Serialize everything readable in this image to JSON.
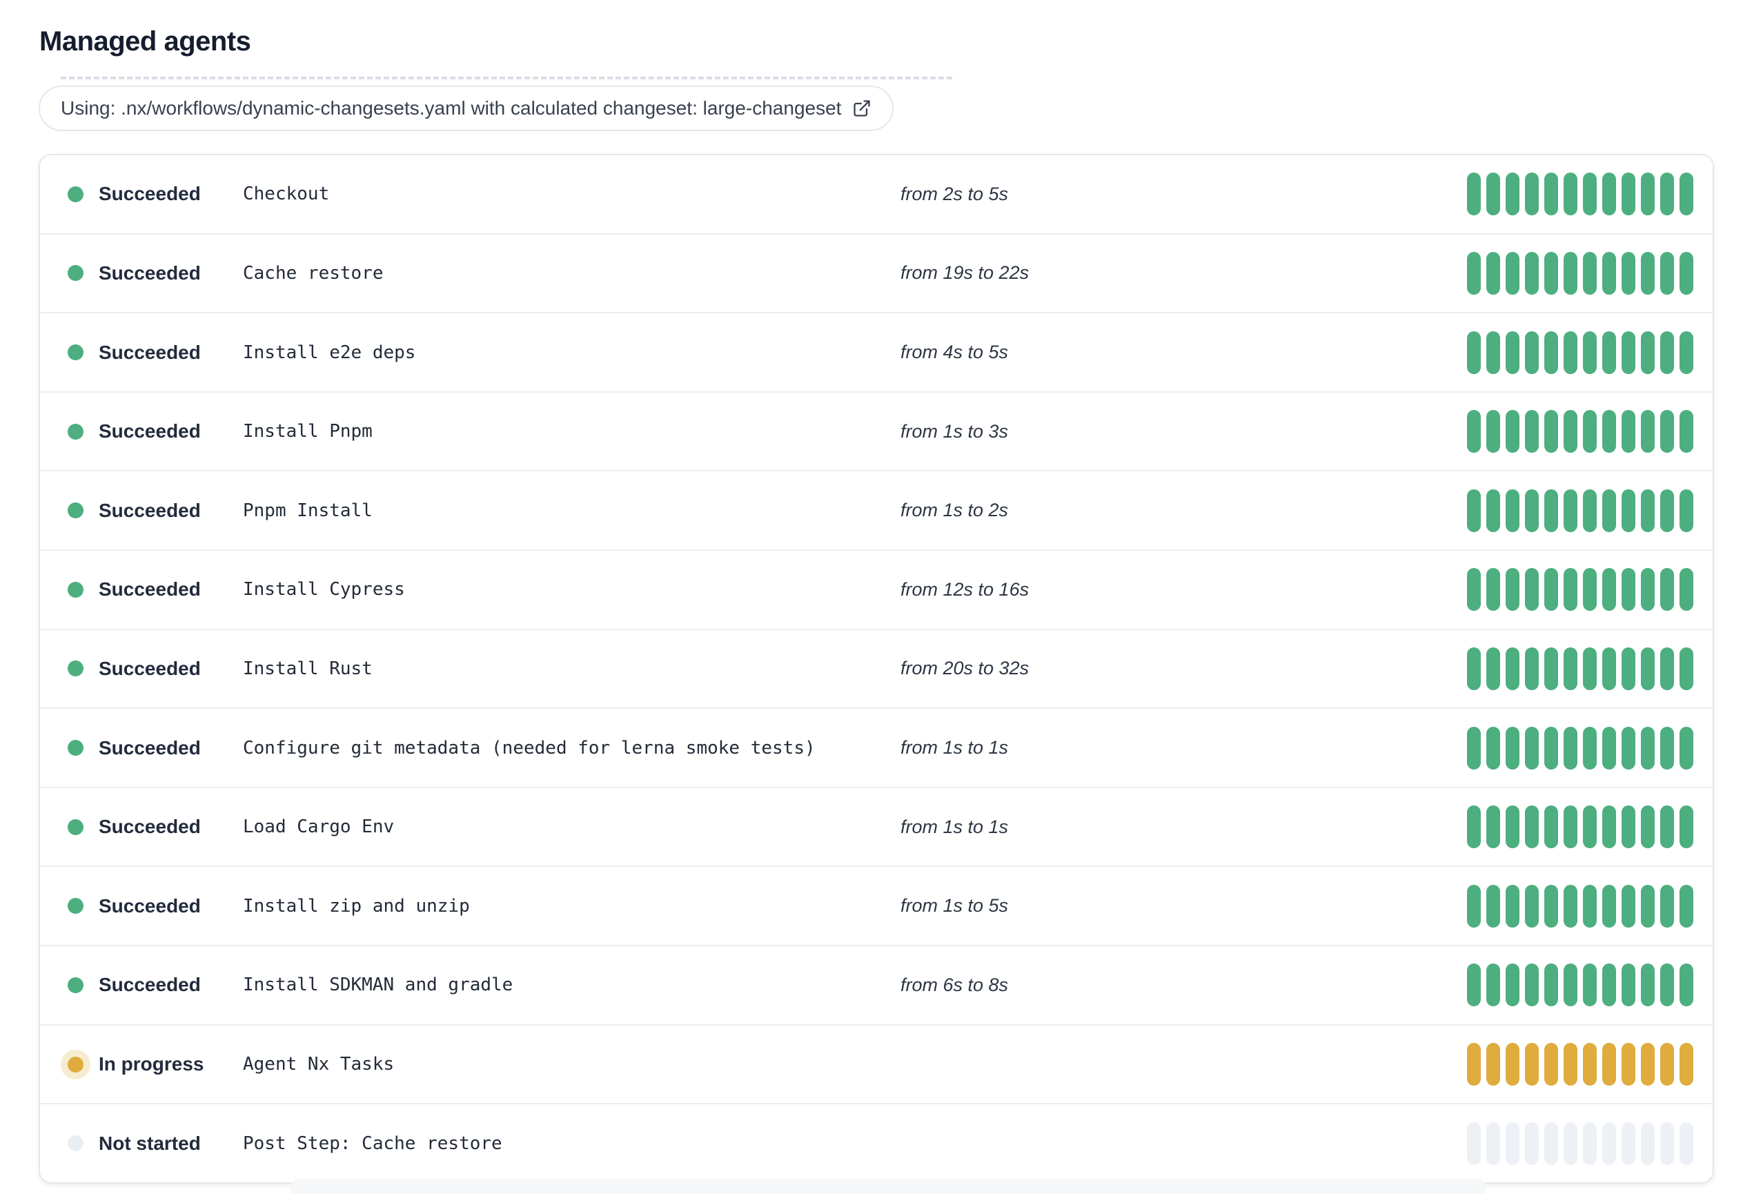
{
  "page": {
    "title": "Managed agents"
  },
  "banner": {
    "text": "Using: .nx/workflows/dynamic-changesets.yaml with calculated changeset: large-changeset",
    "icon": "external-link-icon"
  },
  "status_colors": {
    "succeeded": "#4dae80",
    "in_progress": "#dfac3d",
    "not_started": "#edf1f6"
  },
  "agents": {
    "segments_per_row": 12,
    "rows": [
      {
        "status": "Succeeded",
        "status_key": "succeeded",
        "step": "Checkout",
        "duration": "from 2s to 5s"
      },
      {
        "status": "Succeeded",
        "status_key": "succeeded",
        "step": "Cache restore",
        "duration": "from 19s to 22s"
      },
      {
        "status": "Succeeded",
        "status_key": "succeeded",
        "step": "Install e2e deps",
        "duration": "from 4s to 5s"
      },
      {
        "status": "Succeeded",
        "status_key": "succeeded",
        "step": "Install Pnpm",
        "duration": "from 1s to 3s"
      },
      {
        "status": "Succeeded",
        "status_key": "succeeded",
        "step": "Pnpm Install",
        "duration": "from 1s to 2s"
      },
      {
        "status": "Succeeded",
        "status_key": "succeeded",
        "step": "Install Cypress",
        "duration": "from 12s to 16s"
      },
      {
        "status": "Succeeded",
        "status_key": "succeeded",
        "step": "Install Rust",
        "duration": "from 20s to 32s"
      },
      {
        "status": "Succeeded",
        "status_key": "succeeded",
        "step": "Configure git metadata (needed for lerna smoke tests)",
        "duration": "from 1s to 1s"
      },
      {
        "status": "Succeeded",
        "status_key": "succeeded",
        "step": "Load Cargo Env",
        "duration": "from 1s to 1s"
      },
      {
        "status": "Succeeded",
        "status_key": "succeeded",
        "step": "Install zip and unzip",
        "duration": "from 1s to 5s"
      },
      {
        "status": "Succeeded",
        "status_key": "succeeded",
        "step": "Install SDKMAN and gradle",
        "duration": "from 6s to 8s"
      },
      {
        "status": "In progress",
        "status_key": "in-progress",
        "step": "Agent Nx Tasks",
        "duration": ""
      },
      {
        "status": "Not started",
        "status_key": "not-started",
        "step": "Post Step: Cache restore",
        "duration": ""
      }
    ]
  }
}
